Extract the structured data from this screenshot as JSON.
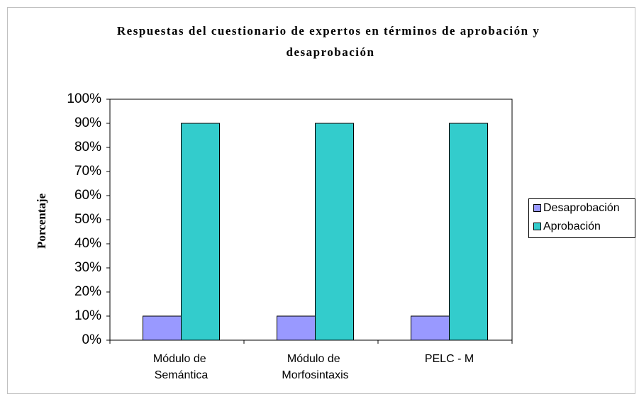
{
  "chart_data": {
    "type": "bar",
    "title": "Respuestas del cuestionario de expertos en términos de aprobación y desaprobación",
    "y_label": "Porcentaje",
    "categories": [
      "Módulo de Semántica",
      "Módulo de Morfosintaxis",
      "PELC - M"
    ],
    "series": [
      {
        "name": "Desaprobación",
        "color": "#9999ff",
        "values": [
          10,
          10,
          10
        ]
      },
      {
        "name": "Aprobación",
        "color": "#33cccc",
        "values": [
          90,
          90,
          90
        ]
      }
    ],
    "ylim": [
      0,
      100
    ],
    "yticks": [
      {
        "value": 0,
        "label": "0%"
      },
      {
        "value": 10,
        "label": "10%"
      },
      {
        "value": 20,
        "label": "20%"
      },
      {
        "value": 30,
        "label": "30%"
      },
      {
        "value": 40,
        "label": "40%"
      },
      {
        "value": 50,
        "label": "50%"
      },
      {
        "value": 60,
        "label": "60%"
      },
      {
        "value": 70,
        "label": "70%"
      },
      {
        "value": 80,
        "label": "80%"
      },
      {
        "value": 90,
        "label": "90%"
      },
      {
        "value": 100,
        "label": "100%"
      }
    ],
    "grid": false,
    "legend": "right"
  }
}
